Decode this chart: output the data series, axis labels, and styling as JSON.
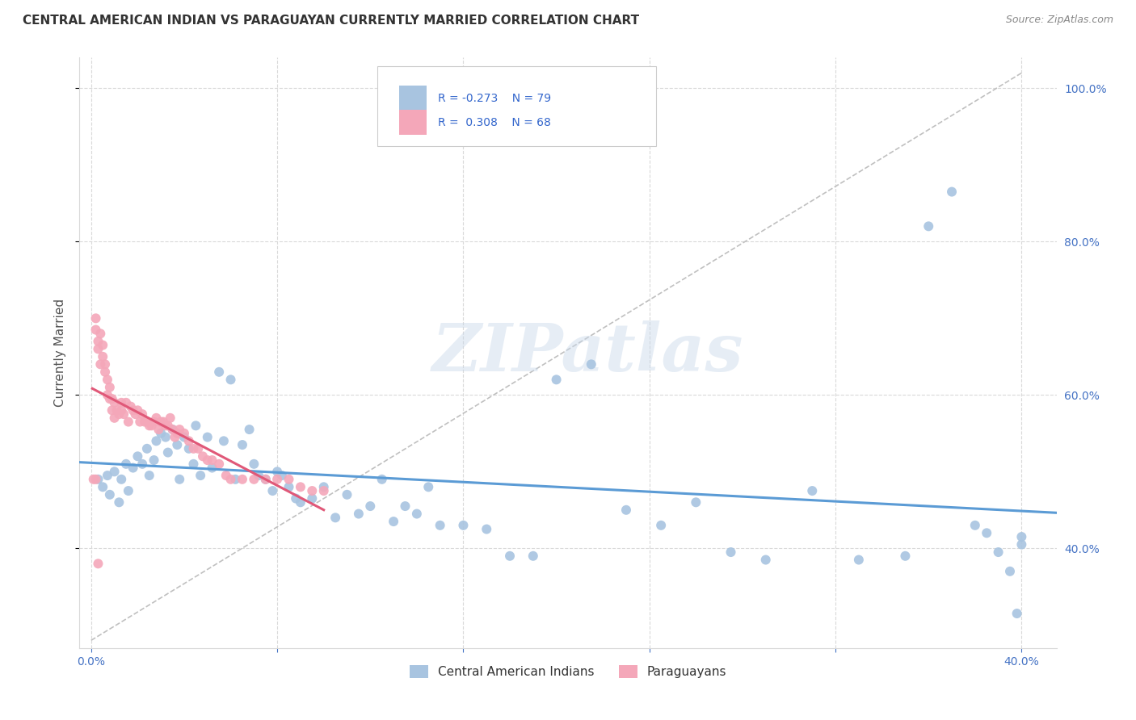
{
  "title": "CENTRAL AMERICAN INDIAN VS PARAGUAYAN CURRENTLY MARRIED CORRELATION CHART",
  "source": "Source: ZipAtlas.com",
  "ylabel": "Currently Married",
  "legend_blue_label": "Central American Indians",
  "legend_pink_label": "Paraguayans",
  "legend_blue_R": "R = -0.273",
  "legend_blue_N": "N = 79",
  "legend_pink_R": "R =  0.308",
  "legend_pink_N": "N = 68",
  "xlim": [
    -0.005,
    0.415
  ],
  "ylim": [
    0.27,
    1.04
  ],
  "xticks": [
    0.0,
    0.08,
    0.16,
    0.24,
    0.32,
    0.4
  ],
  "yticks": [
    0.4,
    0.6,
    0.8,
    1.0
  ],
  "blue_color": "#a8c4e0",
  "pink_color": "#f4a7b9",
  "blue_line_color": "#5b9bd5",
  "pink_line_color": "#e05878",
  "watermark": "ZIPatlas",
  "grid_color": "#d9d9d9",
  "blue_scatter_x": [
    0.003,
    0.005,
    0.007,
    0.008,
    0.01,
    0.012,
    0.013,
    0.015,
    0.016,
    0.018,
    0.02,
    0.022,
    0.024,
    0.025,
    0.027,
    0.028,
    0.03,
    0.032,
    0.033,
    0.035,
    0.037,
    0.038,
    0.04,
    0.042,
    0.044,
    0.045,
    0.047,
    0.05,
    0.052,
    0.055,
    0.057,
    0.06,
    0.062,
    0.065,
    0.068,
    0.07,
    0.072,
    0.075,
    0.078,
    0.08,
    0.082,
    0.085,
    0.088,
    0.09,
    0.095,
    0.1,
    0.105,
    0.11,
    0.115,
    0.12,
    0.125,
    0.13,
    0.135,
    0.14,
    0.145,
    0.15,
    0.16,
    0.17,
    0.18,
    0.19,
    0.2,
    0.215,
    0.23,
    0.245,
    0.26,
    0.275,
    0.29,
    0.31,
    0.33,
    0.35,
    0.36,
    0.37,
    0.38,
    0.385,
    0.39,
    0.395,
    0.398,
    0.4,
    0.4
  ],
  "blue_scatter_y": [
    0.49,
    0.48,
    0.495,
    0.47,
    0.5,
    0.46,
    0.49,
    0.51,
    0.475,
    0.505,
    0.52,
    0.51,
    0.53,
    0.495,
    0.515,
    0.54,
    0.55,
    0.545,
    0.525,
    0.555,
    0.535,
    0.49,
    0.545,
    0.53,
    0.51,
    0.56,
    0.495,
    0.545,
    0.505,
    0.63,
    0.54,
    0.62,
    0.49,
    0.535,
    0.555,
    0.51,
    0.495,
    0.49,
    0.475,
    0.5,
    0.495,
    0.48,
    0.465,
    0.46,
    0.465,
    0.48,
    0.44,
    0.47,
    0.445,
    0.455,
    0.49,
    0.435,
    0.455,
    0.445,
    0.48,
    0.43,
    0.43,
    0.425,
    0.39,
    0.39,
    0.62,
    0.64,
    0.45,
    0.43,
    0.46,
    0.395,
    0.385,
    0.475,
    0.385,
    0.39,
    0.82,
    0.865,
    0.43,
    0.42,
    0.395,
    0.37,
    0.315,
    0.405,
    0.415
  ],
  "pink_scatter_x": [
    0.001,
    0.002,
    0.002,
    0.003,
    0.003,
    0.004,
    0.004,
    0.005,
    0.005,
    0.006,
    0.006,
    0.007,
    0.007,
    0.008,
    0.008,
    0.009,
    0.009,
    0.01,
    0.01,
    0.011,
    0.012,
    0.013,
    0.013,
    0.014,
    0.015,
    0.016,
    0.017,
    0.018,
    0.019,
    0.02,
    0.021,
    0.022,
    0.023,
    0.024,
    0.025,
    0.026,
    0.027,
    0.028,
    0.029,
    0.03,
    0.031,
    0.032,
    0.033,
    0.034,
    0.035,
    0.036,
    0.037,
    0.038,
    0.04,
    0.042,
    0.044,
    0.046,
    0.048,
    0.05,
    0.052,
    0.055,
    0.058,
    0.06,
    0.065,
    0.07,
    0.075,
    0.08,
    0.085,
    0.09,
    0.095,
    0.1,
    0.002,
    0.003
  ],
  "pink_scatter_y": [
    0.49,
    0.685,
    0.7,
    0.67,
    0.66,
    0.68,
    0.64,
    0.665,
    0.65,
    0.63,
    0.64,
    0.6,
    0.62,
    0.595,
    0.61,
    0.58,
    0.595,
    0.59,
    0.57,
    0.58,
    0.575,
    0.59,
    0.58,
    0.575,
    0.59,
    0.565,
    0.585,
    0.58,
    0.575,
    0.58,
    0.565,
    0.575,
    0.565,
    0.565,
    0.56,
    0.56,
    0.565,
    0.57,
    0.555,
    0.565,
    0.565,
    0.56,
    0.56,
    0.57,
    0.555,
    0.545,
    0.55,
    0.555,
    0.55,
    0.54,
    0.53,
    0.53,
    0.52,
    0.515,
    0.515,
    0.51,
    0.495,
    0.49,
    0.49,
    0.49,
    0.49,
    0.49,
    0.49,
    0.48,
    0.475,
    0.475,
    0.49,
    0.38
  ]
}
